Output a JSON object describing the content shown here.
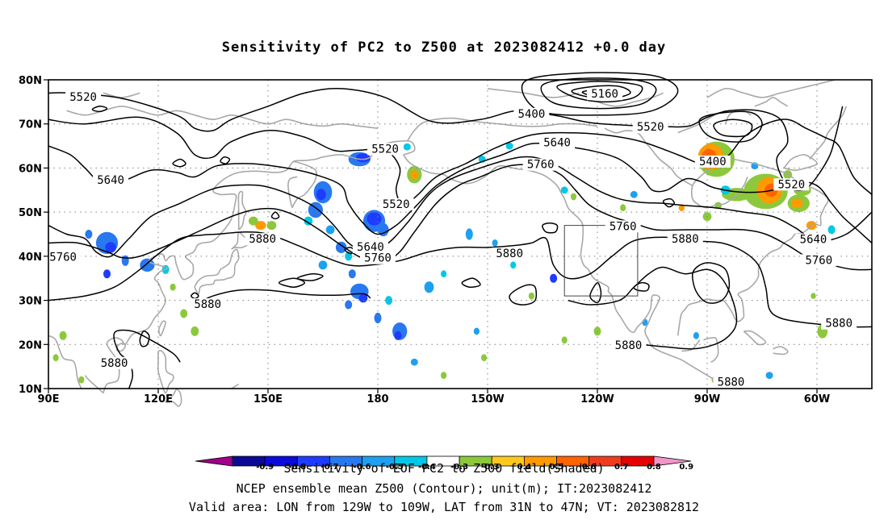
{
  "title": "Sensitivity of PC2 to Z500 at 2023082412 +0.0 day",
  "footer": {
    "line1": "Sensitivity of EOF PC2 to Z500 field(Shaded)",
    "line2": "NCEP ensemble mean Z500 (Contour); unit(m); IT:2023082412",
    "line3": "Valid area: LON from 129W to 109W, LAT from 31N to 47N; VT: 2023082812"
  },
  "map": {
    "lat_labels": [
      "80N",
      "70N",
      "60N",
      "50N",
      "40N",
      "30N",
      "20N",
      "10N"
    ],
    "lon_labels": [
      "90E",
      "120E",
      "150E",
      "180",
      "150W",
      "120W",
      "90W",
      "60W"
    ],
    "lon_range": [
      90,
      315
    ],
    "lat_range": [
      10,
      80
    ],
    "grid": true,
    "valid_box": {
      "lon": [
        -129,
        -109
      ],
      "lat": [
        31,
        47
      ]
    },
    "contour_labels": [
      {
        "text": "5160",
        "lon": 242.0,
        "lat": 76.5
      },
      {
        "text": "5400",
        "lon": 222.0,
        "lat": 72.0
      },
      {
        "text": "5400",
        "lon": 271.5,
        "lat": 61.2
      },
      {
        "text": "5520",
        "lon": 99.5,
        "lat": 75.8
      },
      {
        "text": "5520",
        "lon": 182.0,
        "lat": 64.0
      },
      {
        "text": "5520",
        "lon": 185.0,
        "lat": 51.5
      },
      {
        "text": "5520",
        "lon": 254.5,
        "lat": 69.0
      },
      {
        "text": "5520",
        "lon": 293.0,
        "lat": 56.0
      },
      {
        "text": "5640",
        "lon": 107.0,
        "lat": 57.0
      },
      {
        "text": "5640",
        "lon": 178.0,
        "lat": 41.8
      },
      {
        "text": "5640",
        "lon": 229.0,
        "lat": 65.5
      },
      {
        "text": "5640",
        "lon": 299.0,
        "lat": 43.5
      },
      {
        "text": "5760",
        "lon": 94.0,
        "lat": 39.5
      },
      {
        "text": "5760",
        "lon": 180.0,
        "lat": 39.3
      },
      {
        "text": "5760",
        "lon": 224.5,
        "lat": 60.5
      },
      {
        "text": "5760",
        "lon": 247.0,
        "lat": 46.5
      },
      {
        "text": "5760",
        "lon": 300.5,
        "lat": 38.8
      },
      {
        "text": "5880",
        "lon": 148.5,
        "lat": 43.6
      },
      {
        "text": "5880",
        "lon": 133.5,
        "lat": 28.8
      },
      {
        "text": "5880",
        "lon": 108.0,
        "lat": 15.5
      },
      {
        "text": "5880",
        "lon": 216.0,
        "lat": 40.3
      },
      {
        "text": "5880",
        "lon": 264.0,
        "lat": 43.6
      },
      {
        "text": "5880",
        "lon": 248.5,
        "lat": 19.5
      },
      {
        "text": "5880",
        "lon": 276.5,
        "lat": 11.2
      },
      {
        "text": "5880",
        "lon": 306.0,
        "lat": 24.5
      }
    ]
  },
  "colorbar": {
    "labels": [
      "-0.9",
      "-0.8",
      "-0.7",
      "-0.6",
      "-0.5",
      "-0.4",
      "-0.3",
      "0.3",
      "0.4",
      "0.5",
      "0.6",
      "0.7",
      "0.8",
      "0.9"
    ],
    "colors": [
      "#a0008c",
      "#0a0a96",
      "#0a0adc",
      "#1e3cff",
      "#2878f0",
      "#1ea0f0",
      "#00c8e6",
      "#ffffff",
      "#8cc83c",
      "#ffc81e",
      "#ff9a00",
      "#ff6400",
      "#f03c1e",
      "#e60000",
      "#f096c8"
    ]
  }
}
